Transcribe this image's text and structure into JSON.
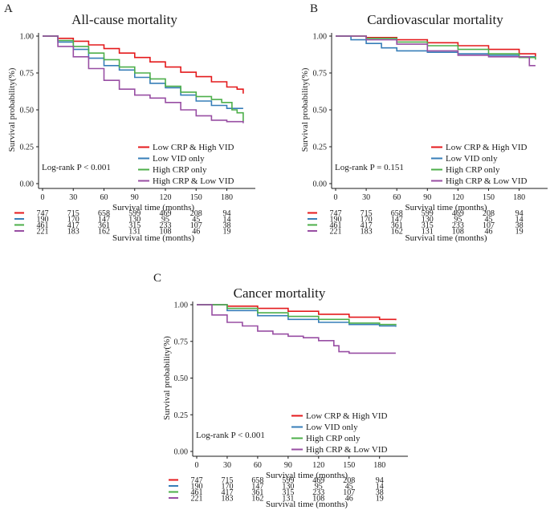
{
  "chart_data": [
    {
      "type": "line",
      "panel": "A",
      "title": "All-cause mortality",
      "xlabel": "Survival time (months)",
      "ylabel": "Survival probability(%)",
      "xlim": [
        0,
        200
      ],
      "ylim": [
        0,
        1
      ],
      "xticks": [
        "0",
        "30",
        "60",
        "90",
        "120",
        "150",
        "180"
      ],
      "yticks": [
        "0.00",
        "0.25",
        "0.50",
        "0.75",
        "1.00"
      ],
      "logrank": "Log-rank P < 0.001",
      "risk_label": "Survival time (months)",
      "series": [
        {
          "name": "Low CRP & High VID",
          "color": "#e41a1c",
          "x": [
            0,
            15,
            30,
            45,
            60,
            75,
            90,
            105,
            120,
            135,
            150,
            165,
            180,
            190,
            196
          ],
          "y": [
            1.0,
            0.985,
            0.965,
            0.94,
            0.915,
            0.885,
            0.855,
            0.825,
            0.79,
            0.755,
            0.725,
            0.69,
            0.655,
            0.64,
            0.61
          ]
        },
        {
          "name": "Low VID only",
          "color": "#377eb8",
          "x": [
            0,
            15,
            30,
            45,
            60,
            75,
            90,
            105,
            120,
            135,
            150,
            165,
            180,
            196
          ],
          "y": [
            1.0,
            0.96,
            0.91,
            0.85,
            0.8,
            0.77,
            0.72,
            0.68,
            0.65,
            0.6,
            0.56,
            0.53,
            0.51,
            0.51
          ]
        },
        {
          "name": "High CRP only",
          "color": "#4daf4a",
          "x": [
            0,
            15,
            30,
            45,
            60,
            75,
            90,
            105,
            120,
            135,
            150,
            165,
            175,
            185,
            190,
            196
          ],
          "y": [
            1.0,
            0.97,
            0.93,
            0.885,
            0.84,
            0.79,
            0.75,
            0.71,
            0.66,
            0.62,
            0.59,
            0.57,
            0.55,
            0.5,
            0.48,
            0.42
          ]
        },
        {
          "name": "High CRP & Low VID",
          "color": "#984ea3",
          "x": [
            0,
            15,
            30,
            45,
            60,
            75,
            90,
            105,
            120,
            135,
            150,
            165,
            180,
            196
          ],
          "y": [
            1.0,
            0.93,
            0.86,
            0.78,
            0.7,
            0.64,
            0.6,
            0.58,
            0.55,
            0.5,
            0.46,
            0.43,
            0.42,
            0.41
          ]
        }
      ],
      "risk_table": [
        [
          "747",
          "715",
          "658",
          "599",
          "469",
          "208",
          "94"
        ],
        [
          "190",
          "170",
          "147",
          "130",
          "95",
          "45",
          "14"
        ],
        [
          "461",
          "417",
          "361",
          "315",
          "233",
          "107",
          "38"
        ],
        [
          "221",
          "183",
          "162",
          "131",
          "108",
          "46",
          "19"
        ]
      ]
    },
    {
      "type": "line",
      "panel": "B",
      "title": "Cardiovascular mortality",
      "xlabel": "Survival time (months)",
      "ylabel": "Survival probability(%)",
      "xlim": [
        0,
        200
      ],
      "ylim": [
        0,
        1
      ],
      "xticks": [
        "0",
        "30",
        "60",
        "90",
        "120",
        "150",
        "180"
      ],
      "yticks": [
        "0.00",
        "0.25",
        "0.50",
        "0.75",
        "1.00"
      ],
      "logrank": "Log-rank P = 0.151",
      "risk_label": "Survival time (months)",
      "series": [
        {
          "name": "Low CRP & High VID",
          "color": "#e41a1c",
          "x": [
            0,
            30,
            60,
            90,
            120,
            150,
            180,
            196
          ],
          "y": [
            1.0,
            0.99,
            0.975,
            0.955,
            0.935,
            0.91,
            0.88,
            0.86
          ]
        },
        {
          "name": "Low VID only",
          "color": "#377eb8",
          "x": [
            0,
            15,
            30,
            45,
            60,
            90,
            120,
            150,
            180,
            196
          ],
          "y": [
            1.0,
            0.975,
            0.95,
            0.92,
            0.9,
            0.89,
            0.88,
            0.87,
            0.86,
            0.86
          ]
        },
        {
          "name": "High CRP only",
          "color": "#4daf4a",
          "x": [
            0,
            30,
            60,
            90,
            120,
            150,
            180,
            196
          ],
          "y": [
            1.0,
            0.985,
            0.96,
            0.935,
            0.91,
            0.88,
            0.855,
            0.84
          ]
        },
        {
          "name": "High CRP & Low VID",
          "color": "#984ea3",
          "x": [
            0,
            30,
            60,
            90,
            120,
            150,
            180,
            190,
            196
          ],
          "y": [
            1.0,
            0.975,
            0.945,
            0.9,
            0.87,
            0.86,
            0.86,
            0.8,
            0.8
          ]
        }
      ],
      "risk_table": [
        [
          "747",
          "715",
          "658",
          "599",
          "469",
          "208",
          "94"
        ],
        [
          "190",
          "170",
          "147",
          "130",
          "95",
          "45",
          "14"
        ],
        [
          "461",
          "417",
          "361",
          "315",
          "233",
          "107",
          "38"
        ],
        [
          "221",
          "183",
          "162",
          "131",
          "108",
          "46",
          "19"
        ]
      ]
    },
    {
      "type": "line",
      "panel": "C",
      "title": "Cancer mortality",
      "xlabel": "Survival time (months)",
      "ylabel": "Survival probability(%)",
      "xlim": [
        0,
        200
      ],
      "ylim": [
        0,
        1
      ],
      "xticks": [
        "0",
        "30",
        "60",
        "90",
        "120",
        "150",
        "180"
      ],
      "yticks": [
        "0.00",
        "0.25",
        "0.50",
        "0.75",
        "1.00"
      ],
      "logrank": "Log-rank P < 0.001",
      "risk_label": "Survival time (months)",
      "series": [
        {
          "name": "Low CRP & High VID",
          "color": "#e41a1c",
          "x": [
            0,
            30,
            60,
            90,
            120,
            150,
            180,
            196
          ],
          "y": [
            1.0,
            0.99,
            0.975,
            0.955,
            0.935,
            0.915,
            0.9,
            0.895
          ]
        },
        {
          "name": "Low VID only",
          "color": "#377eb8",
          "x": [
            0,
            30,
            60,
            90,
            120,
            150,
            180,
            196
          ],
          "y": [
            1.0,
            0.96,
            0.925,
            0.9,
            0.88,
            0.865,
            0.855,
            0.85
          ]
        },
        {
          "name": "High CRP only",
          "color": "#4daf4a",
          "x": [
            0,
            30,
            60,
            90,
            120,
            150,
            180,
            196
          ],
          "y": [
            1.0,
            0.975,
            0.945,
            0.92,
            0.9,
            0.875,
            0.865,
            0.86
          ]
        },
        {
          "name": "High CRP & Low VID",
          "color": "#984ea3",
          "x": [
            0,
            15,
            30,
            45,
            60,
            75,
            90,
            105,
            120,
            135,
            140,
            150,
            180,
            196
          ],
          "y": [
            1.0,
            0.93,
            0.88,
            0.855,
            0.82,
            0.8,
            0.785,
            0.775,
            0.755,
            0.72,
            0.68,
            0.67,
            0.67,
            0.67
          ]
        }
      ],
      "risk_table": [
        [
          "747",
          "715",
          "658",
          "599",
          "469",
          "208",
          "94"
        ],
        [
          "190",
          "170",
          "147",
          "130",
          "95",
          "45",
          "14"
        ],
        [
          "461",
          "417",
          "361",
          "315",
          "233",
          "107",
          "38"
        ],
        [
          "221",
          "183",
          "162",
          "131",
          "108",
          "46",
          "19"
        ]
      ]
    }
  ]
}
